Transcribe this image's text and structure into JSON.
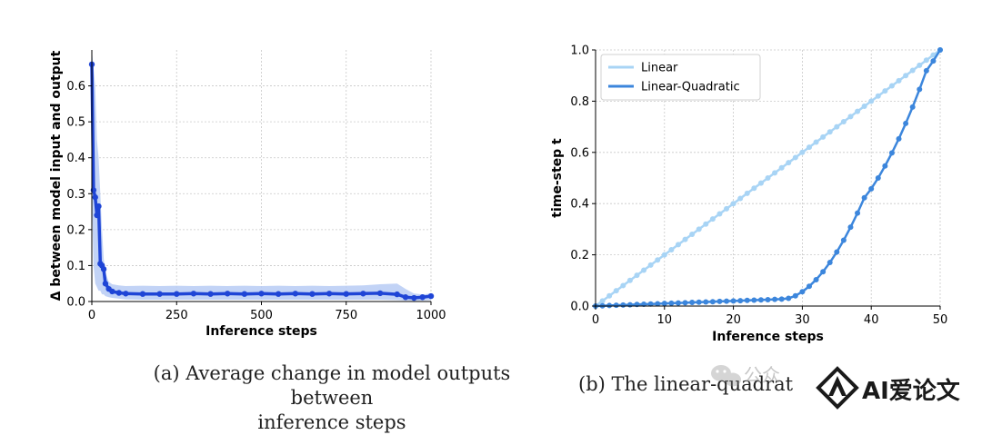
{
  "chart_data": [
    {
      "type": "line",
      "xlabel": "Inference steps",
      "ylabel": "Δ between model input and output",
      "xlim": [
        0,
        1000
      ],
      "ylim": [
        0,
        0.7
      ],
      "xticks": [
        0,
        250,
        500,
        750,
        1000
      ],
      "yticks": [
        0.0,
        0.1,
        0.2,
        0.3,
        0.4,
        0.5,
        0.6
      ],
      "grid": true,
      "series": [
        {
          "name": "",
          "color": "#1f45d6",
          "band_color": "#b7cbf5",
          "x": [
            0,
            5,
            10,
            15,
            20,
            25,
            30,
            35,
            40,
            50,
            60,
            80,
            100,
            150,
            200,
            250,
            300,
            350,
            400,
            450,
            500,
            550,
            600,
            650,
            700,
            750,
            800,
            850,
            900,
            925,
            950,
            975,
            1000
          ],
          "values": [
            0.66,
            0.31,
            0.29,
            0.24,
            0.265,
            0.105,
            0.1,
            0.09,
            0.05,
            0.035,
            0.028,
            0.024,
            0.022,
            0.021,
            0.021,
            0.021,
            0.022,
            0.021,
            0.022,
            0.021,
            0.022,
            0.021,
            0.022,
            0.021,
            0.022,
            0.021,
            0.022,
            0.023,
            0.02,
            0.012,
            0.01,
            0.012,
            0.015
          ],
          "upper": [
            0.7,
            0.65,
            0.6,
            0.45,
            0.4,
            0.3,
            0.2,
            0.12,
            0.08,
            0.055,
            0.048,
            0.045,
            0.043,
            0.044,
            0.043,
            0.044,
            0.043,
            0.044,
            0.043,
            0.044,
            0.043,
            0.044,
            0.043,
            0.044,
            0.043,
            0.044,
            0.045,
            0.048,
            0.05,
            0.035,
            0.022,
            0.02,
            0.022
          ],
          "lower": [
            0.3,
            0.1,
            0.05,
            0.04,
            0.03,
            0.03,
            0.02,
            0.02,
            0.015,
            0.012,
            0.01,
            0.008,
            0.006,
            0.005,
            0.005,
            0.005,
            0.005,
            0.005,
            0.005,
            0.005,
            0.005,
            0.005,
            0.005,
            0.005,
            0.005,
            0.005,
            0.005,
            0.005,
            0.004,
            0.003,
            0.002,
            0.003,
            0.004
          ]
        }
      ],
      "caption_lines": [
        "(a) Average change in model outputs between",
        "inference steps"
      ]
    },
    {
      "type": "line",
      "xlabel": "Inference steps",
      "ylabel": "time-step t",
      "xlim": [
        0,
        50
      ],
      "ylim": [
        0,
        1.0
      ],
      "xticks": [
        0,
        10,
        20,
        30,
        40,
        50
      ],
      "yticks": [
        0.0,
        0.2,
        0.4,
        0.6,
        0.8,
        1.0
      ],
      "grid": true,
      "legend": "top-left",
      "series": [
        {
          "name": "Linear",
          "color": "#a8d4f5",
          "x": [
            0,
            1,
            2,
            3,
            4,
            5,
            6,
            7,
            8,
            9,
            10,
            11,
            12,
            13,
            14,
            15,
            16,
            17,
            18,
            19,
            20,
            21,
            22,
            23,
            24,
            25,
            26,
            27,
            28,
            29,
            30,
            31,
            32,
            33,
            34,
            35,
            36,
            37,
            38,
            39,
            40,
            41,
            42,
            43,
            44,
            45,
            46,
            47,
            48,
            49,
            50
          ],
          "values": [
            0,
            0.02,
            0.04,
            0.06,
            0.08,
            0.1,
            0.12,
            0.14,
            0.16,
            0.18,
            0.2,
            0.22,
            0.24,
            0.26,
            0.28,
            0.3,
            0.32,
            0.34,
            0.36,
            0.38,
            0.4,
            0.42,
            0.44,
            0.46,
            0.48,
            0.5,
            0.52,
            0.54,
            0.56,
            0.58,
            0.6,
            0.62,
            0.64,
            0.66,
            0.68,
            0.7,
            0.72,
            0.74,
            0.76,
            0.78,
            0.8,
            0.82,
            0.84,
            0.86,
            0.88,
            0.9,
            0.92,
            0.94,
            0.96,
            0.98,
            1.0
          ]
        },
        {
          "name": "Linear-Quadratic",
          "color": "#3c86dc",
          "x": [
            0,
            1,
            2,
            3,
            4,
            5,
            6,
            7,
            8,
            9,
            10,
            11,
            12,
            13,
            14,
            15,
            16,
            17,
            18,
            19,
            20,
            21,
            22,
            23,
            24,
            25,
            26,
            27,
            28,
            29,
            30,
            31,
            32,
            33,
            34,
            35,
            36,
            37,
            38,
            39,
            40,
            41,
            42,
            43,
            44,
            45,
            46,
            47,
            48,
            49,
            50
          ],
          "values": [
            0,
            0.001,
            0.002,
            0.003,
            0.004,
            0.005,
            0.006,
            0.007,
            0.008,
            0.009,
            0.01,
            0.011,
            0.012,
            0.013,
            0.014,
            0.015,
            0.016,
            0.017,
            0.018,
            0.019,
            0.02,
            0.021,
            0.022,
            0.023,
            0.024,
            0.025,
            0.026,
            0.027,
            0.03,
            0.04,
            0.056,
            0.077,
            0.103,
            0.134,
            0.17,
            0.211,
            0.257,
            0.308,
            0.363,
            0.423,
            0.458,
            0.5,
            0.547,
            0.598,
            0.653,
            0.713,
            0.777,
            0.846,
            0.919,
            0.957,
            1.0
          ]
        }
      ],
      "caption_lines": [
        "(b) The linear-quadrat"
      ]
    }
  ],
  "watermark": {
    "wechat_text": "公众",
    "brand_text": "AI爱论文"
  }
}
